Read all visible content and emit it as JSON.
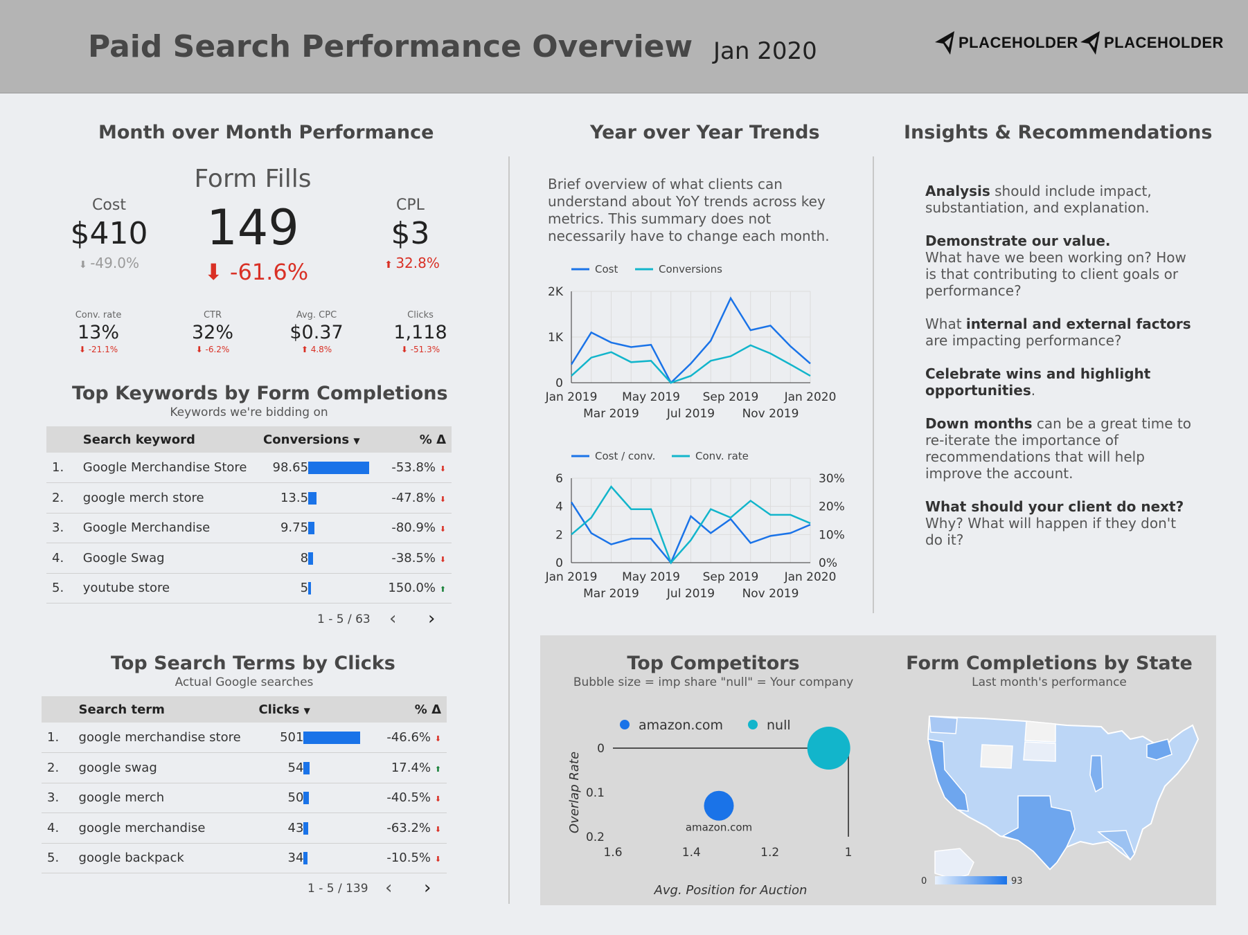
{
  "header": {
    "title": "Paid Search Performance Overview",
    "month": "Jan 2020",
    "logos": [
      "PLACEHOLDER",
      "PLACEHOLDER"
    ]
  },
  "mom": {
    "title": "Month over Month Performance",
    "form_fills": {
      "label": "Form Fills",
      "value": "149",
      "delta": "-61.6%"
    },
    "cost": {
      "label": "Cost",
      "value": "$410",
      "delta": "-49.0%"
    },
    "cpl": {
      "label": "CPL",
      "value": "$3",
      "delta": "32.8%"
    },
    "small": [
      {
        "label": "Conv. rate",
        "value": "13%",
        "delta": "-21.1%",
        "dir": "down"
      },
      {
        "label": "CTR",
        "value": "32%",
        "delta": "-6.2%",
        "dir": "down"
      },
      {
        "label": "Avg. CPC",
        "value": "$0.37",
        "delta": "4.8%",
        "dir": "up"
      },
      {
        "label": "Clicks",
        "value": "1,118",
        "delta": "-51.3%",
        "dir": "down"
      }
    ]
  },
  "keywords": {
    "title": "Top Keywords by Form Completions",
    "subtitle": "Keywords we're bidding on",
    "col_keyword": "Search keyword",
    "col_conv": "Conversions",
    "col_delta": "% Δ",
    "rows": [
      {
        "rank": "1.",
        "keyword": "Google Merchandise Store",
        "value": "98.65",
        "num": 98.65,
        "delta": "-53.8%",
        "dir": "down"
      },
      {
        "rank": "2.",
        "keyword": "google merch store",
        "value": "13.5",
        "num": 13.5,
        "delta": "-47.8%",
        "dir": "down"
      },
      {
        "rank": "3.",
        "keyword": "Google Merchandise",
        "value": "9.75",
        "num": 9.75,
        "delta": "-80.9%",
        "dir": "down"
      },
      {
        "rank": "4.",
        "keyword": "Google Swag",
        "value": "8",
        "num": 8,
        "delta": "-38.5%",
        "dir": "down"
      },
      {
        "rank": "5.",
        "keyword": "youtube store",
        "value": "5",
        "num": 5,
        "delta": "150.0%",
        "dir": "up"
      }
    ],
    "pager": "1 - 5 / 63"
  },
  "terms": {
    "title": "Top Search Terms by Clicks",
    "subtitle": "Actual Google searches",
    "col_term": "Search term",
    "col_clicks": "Clicks",
    "col_delta": "% Δ",
    "rows": [
      {
        "rank": "1.",
        "term": "google merchandise store",
        "value": "501",
        "num": 501,
        "delta": "-46.6%",
        "dir": "down"
      },
      {
        "rank": "2.",
        "term": "google swag",
        "value": "54",
        "num": 54,
        "delta": "17.4%",
        "dir": "up"
      },
      {
        "rank": "3.",
        "term": "google merch",
        "value": "50",
        "num": 50,
        "delta": "-40.5%",
        "dir": "down"
      },
      {
        "rank": "4.",
        "term": "google merchandise",
        "value": "43",
        "num": 43,
        "delta": "-63.2%",
        "dir": "down"
      },
      {
        "rank": "5.",
        "term": "google backpack",
        "value": "34",
        "num": 34,
        "delta": "-10.5%",
        "dir": "down"
      }
    ],
    "pager": "1 - 5 / 139"
  },
  "yoy": {
    "title": "Year over Year Trends",
    "text": "Brief overview of what clients can understand about YoY trends across key metrics. This summary does not necessarily have to change each month."
  },
  "insights": {
    "title": "Insights & Recommendations",
    "p1_b": "Analysis",
    "p1": " should include impact, substantiation, and explanation.",
    "p2_b": "Demonstrate our value.",
    "p2": "What have we been working on? How is that contributing to client goals or performance?",
    "p3_a": "What ",
    "p3_b": "internal and external factors",
    "p3": " are impacting performance?",
    "p4_b": "Celebrate wins and highlight opportunities",
    "p4": ".",
    "p5_b": "Down months",
    "p5": " can be a great time to re-iterate the importance of recommendations that will help improve the account.",
    "p6_b": "What should your client do next?",
    "p6": " Why? What will happen if they don't do it?"
  },
  "competitors": {
    "title": "Top Competitors",
    "subtitle": "Bubble size = imp share \"null\" = Your company"
  },
  "state": {
    "title": "Form Completions by State",
    "subtitle": "Last month's performance",
    "legend_min": "0",
    "legend_max": "93"
  },
  "colors": {
    "blue": "#1a73e8",
    "teal": "#12b5cb",
    "red": "#d93025",
    "green": "#188038"
  },
  "chart_data": [
    {
      "type": "line",
      "series": [
        {
          "name": "Cost",
          "values": [
            400,
            1100,
            880,
            780,
            830,
            0,
            420,
            920,
            1850,
            1150,
            1250,
            800,
            420
          ]
        },
        {
          "name": "Conversions",
          "values": [
            150,
            550,
            670,
            450,
            480,
            0,
            150,
            480,
            580,
            820,
            640,
            400,
            150
          ]
        }
      ],
      "x": [
        "Jan 2019",
        "Feb 2019",
        "Mar 2019",
        "Apr 2019",
        "May 2019",
        "Jun 2019",
        "Jul 2019",
        "Aug 2019",
        "Sep 2019",
        "Oct 2019",
        "Nov 2019",
        "Dec 2019",
        "Jan 2020"
      ],
      "xticks_top": [
        "Jan 2019",
        "May 2019",
        "Sep 2019",
        "Jan 2020"
      ],
      "xticks_bottom": [
        "Mar 2019",
        "Jul 2019",
        "Nov 2019"
      ],
      "yticks": [
        "0",
        "1K",
        "2K"
      ],
      "ylim": [
        0,
        2000
      ]
    },
    {
      "type": "line",
      "series": [
        {
          "name": "Cost / conv.",
          "axis": "left",
          "values": [
            4.3,
            2.1,
            1.3,
            1.7,
            1.7,
            0,
            3.3,
            2.1,
            3.1,
            1.4,
            1.9,
            2.1,
            2.7
          ]
        },
        {
          "name": "Conv. rate",
          "axis": "right",
          "values": [
            10,
            16,
            27,
            19,
            19,
            0,
            8,
            19,
            16,
            22,
            17,
            17,
            14
          ]
        }
      ],
      "x": [
        "Jan 2019",
        "Feb 2019",
        "Mar 2019",
        "Apr 2019",
        "May 2019",
        "Jun 2019",
        "Jul 2019",
        "Aug 2019",
        "Sep 2019",
        "Oct 2019",
        "Nov 2019",
        "Dec 2019",
        "Jan 2020"
      ],
      "xticks_top": [
        "Jan 2019",
        "May 2019",
        "Sep 2019",
        "Jan 2020"
      ],
      "xticks_bottom": [
        "Mar 2019",
        "Jul 2019",
        "Nov 2019"
      ],
      "yticks_left": [
        "0",
        "2",
        "4",
        "6"
      ],
      "ylim_left": [
        0,
        6
      ],
      "yticks_right": [
        "0%",
        "10%",
        "20%",
        "30%"
      ],
      "ylim_right": [
        0,
        30
      ]
    },
    {
      "type": "scatter",
      "xlabel": "Avg. Position for Auction",
      "ylabel": "Overlap Rate",
      "xticks": [
        "1.6",
        "1.4",
        "1.2",
        "1"
      ],
      "xlim": [
        1.6,
        1.0
      ],
      "yticks": [
        "0",
        "0.1",
        "0.2"
      ],
      "ylim": [
        0,
        0.2
      ],
      "legend": [
        "amazon.com",
        "null"
      ],
      "points": [
        {
          "name": "amazon.com",
          "x": 1.33,
          "y": 0.13,
          "size": 0.5,
          "label": "amazon.com"
        },
        {
          "name": "null",
          "x": 1.05,
          "y": 0.0,
          "size": 1.0
        }
      ]
    }
  ]
}
